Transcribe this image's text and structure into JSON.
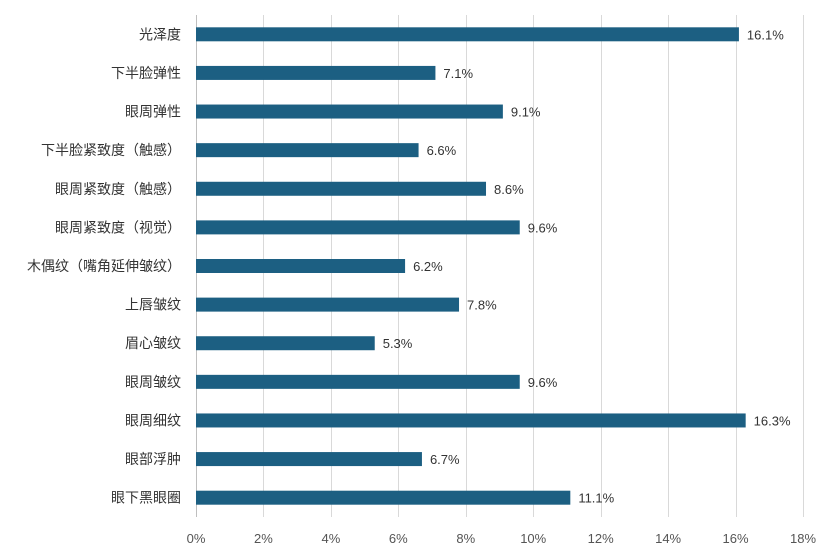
{
  "chart_data": {
    "type": "bar",
    "orientation": "horizontal",
    "title": "",
    "xlabel": "",
    "ylabel": "",
    "categories": [
      "光泽度",
      "下半脸弹性",
      "眼周弹性",
      "下半脸紧致度（触感）",
      "眼周紧致度（触感）",
      "眼周紧致度（视觉）",
      "木偶纹（嘴角延伸皱纹）",
      "上唇皱纹",
      "眉心皱纹",
      "眼周皱纹",
      "眼周细纹",
      "眼部浮肿",
      "眼下黑眼圈"
    ],
    "values": [
      16.1,
      7.1,
      9.1,
      6.6,
      8.6,
      9.6,
      6.2,
      7.8,
      5.3,
      9.6,
      16.3,
      6.7,
      11.1
    ],
    "value_labels": [
      "16.1%",
      "7.1%",
      "9.1%",
      "6.6%",
      "8.6%",
      "9.6%",
      "6.2%",
      "7.8%",
      "5.3%",
      "9.6%",
      "16.3%",
      "6.7%",
      "11.1%"
    ],
    "xlim": [
      0,
      18
    ],
    "x_ticks": [
      0,
      2,
      4,
      6,
      8,
      10,
      12,
      14,
      16,
      18
    ],
    "x_tick_labels": [
      "0%",
      "2%",
      "4%",
      "6%",
      "8%",
      "10%",
      "12%",
      "14%",
      "16%",
      "18%"
    ],
    "grid": "vertical",
    "legend": "none",
    "bar_color": "#1c5f82"
  }
}
